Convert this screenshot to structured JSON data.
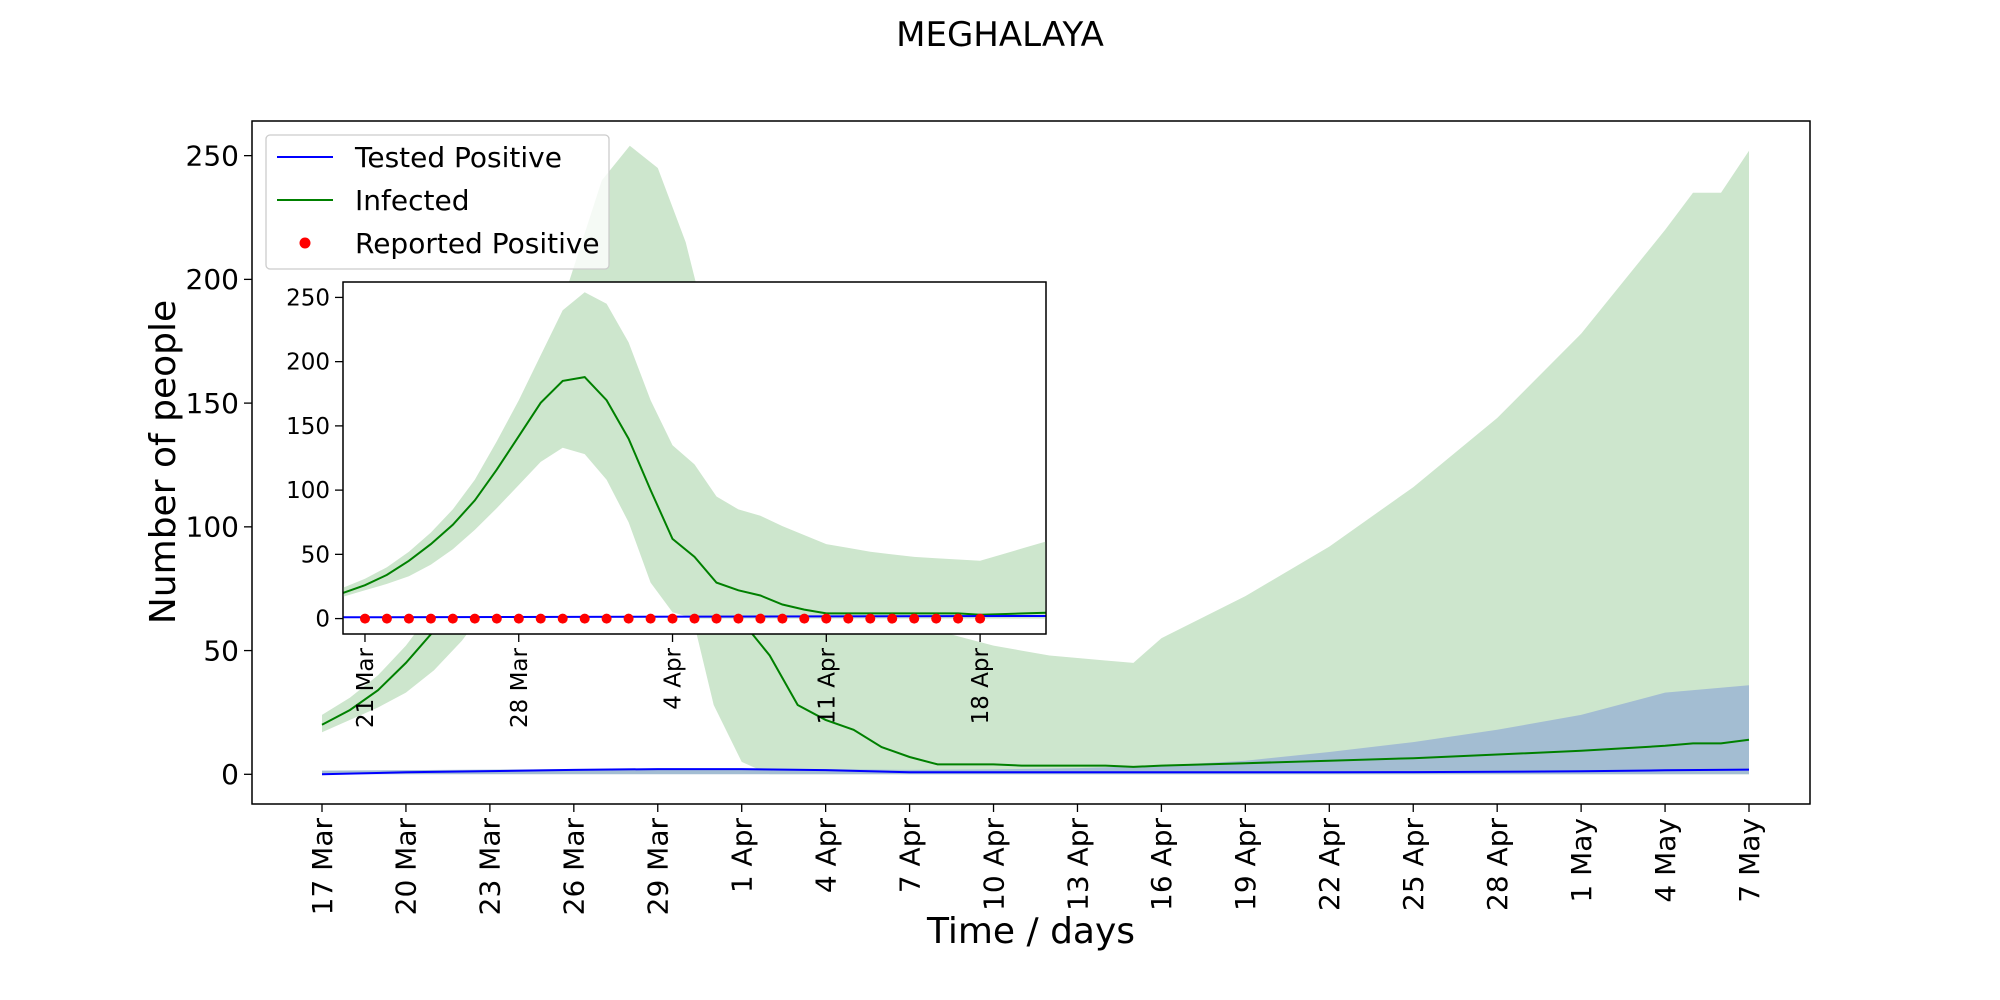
{
  "chart_data": [
    {
      "type": "line",
      "title": "MEGHALAYA",
      "xlabel": "Time / days",
      "ylabel": "Number of people",
      "x_start": "2020-03-17",
      "x_end": "2020-05-07",
      "ylim": [
        -12,
        264
      ],
      "yticks": [
        0,
        50,
        100,
        150,
        200,
        250
      ],
      "xtick_labels": [
        "17 Mar",
        "20 Mar",
        "23 Mar",
        "26 Mar",
        "29 Mar",
        "1 Apr",
        "4 Apr",
        "7 Apr",
        "10 Apr",
        "13 Apr",
        "16 Apr",
        "19 Apr",
        "22 Apr",
        "25 Apr",
        "28 Apr",
        "1 May",
        "4 May",
        "7 May"
      ],
      "legend_position": "top-left",
      "colors": {
        "tested": "#0000ff",
        "infected": "#008000",
        "reported": "#ff0000",
        "infected_band": "#cde6cd",
        "tested_band": "#a3bdd2"
      },
      "series": [
        {
          "name": "Tested Positive",
          "color": "#0000ff",
          "x": [
            "2020-03-17",
            "2020-03-20",
            "2020-03-23",
            "2020-03-26",
            "2020-03-29",
            "2020-04-01",
            "2020-04-04",
            "2020-04-07",
            "2020-04-10",
            "2020-04-13",
            "2020-04-16",
            "2020-04-19",
            "2020-04-22",
            "2020-04-25",
            "2020-04-28",
            "2020-05-01",
            "2020-05-04",
            "2020-05-07"
          ],
          "y": [
            0,
            0.8,
            1.3,
            1.8,
            2.1,
            2.1,
            1.7,
            0.8,
            0.8,
            0.8,
            0.8,
            0.8,
            0.8,
            0.9,
            1.0,
            1.2,
            1.6,
            1.9
          ],
          "band_low": [
            0,
            0,
            0,
            0,
            0,
            0,
            0,
            0,
            0,
            0,
            0,
            0,
            0,
            0,
            0,
            0,
            0,
            0
          ],
          "band_high": [
            1.5,
            1.7,
            1.9,
            2.1,
            2.3,
            2.3,
            2.1,
            1.8,
            2.0,
            2.5,
            3.5,
            5.5,
            9,
            13,
            18,
            24,
            33,
            36
          ]
        },
        {
          "name": "Infected",
          "color": "#008000",
          "x": [
            "2020-03-17",
            "2020-03-18",
            "2020-03-19",
            "2020-03-20",
            "2020-03-21",
            "2020-03-22",
            "2020-03-23",
            "2020-03-24",
            "2020-03-25",
            "2020-03-26",
            "2020-03-27",
            "2020-03-28",
            "2020-03-29",
            "2020-03-30",
            "2020-03-31",
            "2020-04-01",
            "2020-04-02",
            "2020-04-03",
            "2020-04-04",
            "2020-04-05",
            "2020-04-06",
            "2020-04-07",
            "2020-04-08",
            "2020-04-09",
            "2020-04-10",
            "2020-04-11",
            "2020-04-12",
            "2020-04-13",
            "2020-04-14",
            "2020-04-15",
            "2020-04-16",
            "2020-04-19",
            "2020-04-22",
            "2020-04-25",
            "2020-04-28",
            "2020-05-01",
            "2020-05-04",
            "2020-05-05",
            "2020-05-06",
            "2020-05-07"
          ],
          "y": [
            20,
            26,
            34,
            45,
            58,
            73,
            92,
            116,
            142,
            168,
            185,
            188,
            170,
            140,
            100,
            62,
            48,
            28,
            22,
            18,
            11,
            7,
            4,
            4,
            4,
            3.5,
            3.5,
            3.5,
            3.5,
            3,
            3.5,
            4.5,
            5.5,
            6.5,
            8,
            9.5,
            11.5,
            12.5,
            12.5,
            14
          ],
          "band_low": [
            17,
            22,
            27,
            33,
            42,
            54,
            69,
            86,
            104,
            122,
            133,
            128,
            108,
            75,
            28,
            5,
            0,
            0,
            0,
            0,
            0,
            0,
            0,
            0,
            0,
            0,
            0,
            0,
            0,
            0,
            0,
            0,
            0,
            0,
            0,
            0,
            0,
            0,
            0,
            0
          ],
          "band_high": [
            24,
            31,
            40,
            52,
            67,
            85,
            108,
            138,
            170,
            205,
            240,
            254,
            245,
            215,
            170,
            135,
            120,
            95,
            85,
            80,
            72,
            65,
            58,
            55,
            52,
            50,
            48,
            47,
            46,
            45,
            55,
            72,
            92,
            116,
            144,
            178,
            220,
            235,
            235,
            252
          ]
        }
      ]
    },
    {
      "type": "line",
      "inset": true,
      "x_start": "2020-03-20",
      "x_end": "2020-04-21",
      "ylim": [
        -12,
        262
      ],
      "yticks": [
        0,
        50,
        100,
        150,
        200,
        250
      ],
      "xtick_labels": [
        "21 Mar",
        "28 Mar",
        "4 Apr",
        "11 Apr",
        "18 Apr"
      ],
      "series": [
        {
          "name": "Tested Positive",
          "color": "#0000ff",
          "x": [
            "2020-03-20",
            "2020-04-21"
          ],
          "y": [
            1,
            2
          ]
        },
        {
          "name": "Infected",
          "color": "#008000",
          "x": [
            "2020-03-20",
            "2020-03-21",
            "2020-03-22",
            "2020-03-23",
            "2020-03-24",
            "2020-03-25",
            "2020-03-26",
            "2020-03-27",
            "2020-03-28",
            "2020-03-29",
            "2020-03-30",
            "2020-03-31",
            "2020-04-01",
            "2020-04-02",
            "2020-04-03",
            "2020-04-04",
            "2020-04-05",
            "2020-04-06",
            "2020-04-07",
            "2020-04-08",
            "2020-04-09",
            "2020-04-10",
            "2020-04-11",
            "2020-04-12",
            "2020-04-13",
            "2020-04-14",
            "2020-04-15",
            "2020-04-16",
            "2020-04-17",
            "2020-04-18",
            "2020-04-19",
            "2020-04-20",
            "2020-04-21"
          ],
          "y": [
            20,
            26,
            34,
            45,
            58,
            73,
            92,
            116,
            142,
            168,
            185,
            188,
            170,
            140,
            100,
            62,
            48,
            28,
            22,
            18,
            11,
            7,
            4,
            4,
            4,
            4,
            4,
            4,
            4,
            3,
            3.5,
            4,
            4.5
          ],
          "band_low": [
            17,
            22,
            27,
            33,
            42,
            54,
            69,
            86,
            104,
            122,
            133,
            128,
            108,
            75,
            28,
            5,
            0,
            0,
            0,
            0,
            0,
            0,
            0,
            0,
            0,
            0,
            0,
            0,
            0,
            0,
            0,
            0,
            0
          ],
          "band_high": [
            24,
            31,
            40,
            52,
            67,
            85,
            108,
            138,
            170,
            205,
            240,
            254,
            245,
            215,
            170,
            135,
            120,
            95,
            85,
            80,
            72,
            65,
            58,
            55,
            52,
            50,
            48,
            47,
            46,
            45,
            50,
            55,
            60
          ]
        },
        {
          "name": "Reported Positive",
          "color": "#ff0000",
          "x": [
            "2020-03-21",
            "2020-03-22",
            "2020-03-23",
            "2020-03-24",
            "2020-03-25",
            "2020-03-26",
            "2020-03-27",
            "2020-03-28",
            "2020-03-29",
            "2020-03-30",
            "2020-03-31",
            "2020-04-01",
            "2020-04-02",
            "2020-04-03",
            "2020-04-04",
            "2020-04-05",
            "2020-04-06",
            "2020-04-07",
            "2020-04-08",
            "2020-04-09",
            "2020-04-10",
            "2020-04-11",
            "2020-04-12",
            "2020-04-13",
            "2020-04-14",
            "2020-04-15",
            "2020-04-16",
            "2020-04-17",
            "2020-04-18"
          ],
          "y": [
            0,
            0,
            0,
            0,
            0,
            0,
            0,
            0,
            0,
            0,
            0,
            0,
            0,
            0,
            0,
            0,
            0,
            0,
            0,
            0,
            0,
            0,
            0,
            0,
            0,
            0,
            0,
            0,
            0
          ]
        }
      ]
    }
  ]
}
